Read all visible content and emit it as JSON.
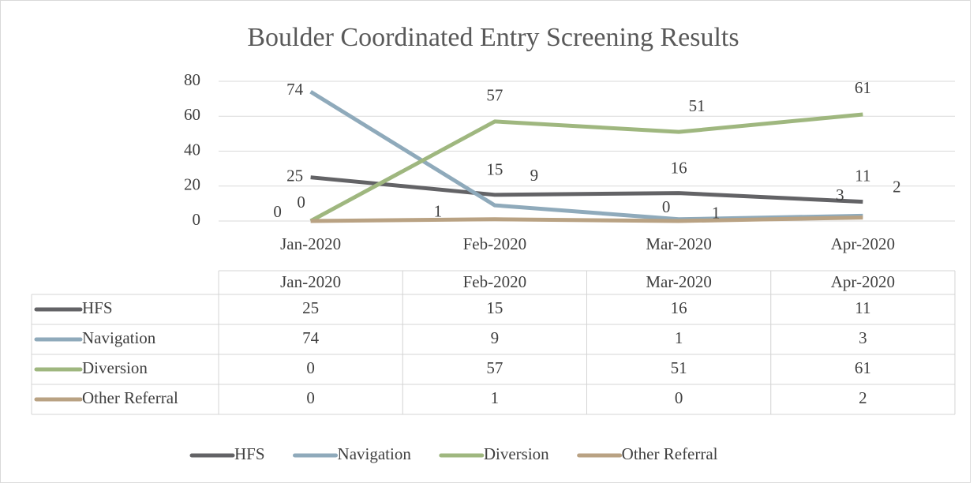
{
  "chart_data": {
    "type": "line",
    "title": "Boulder Coordinated Entry Screening Results",
    "categories": [
      "Jan-2020",
      "Feb-2020",
      "Mar-2020",
      "Apr-2020"
    ],
    "series": [
      {
        "name": "HFS",
        "color": "#636366",
        "values": [
          25,
          15,
          16,
          11
        ]
      },
      {
        "name": "Navigation",
        "color": "#8faabb",
        "values": [
          74,
          9,
          1,
          3
        ]
      },
      {
        "name": "Diversion",
        "color": "#9fb77f",
        "values": [
          0,
          57,
          51,
          61
        ]
      },
      {
        "name": "Other Referral",
        "color": "#b9a283",
        "values": [
          0,
          1,
          0,
          2
        ]
      }
    ],
    "ylim": [
      0,
      80
    ],
    "yticks": [
      0,
      20,
      40,
      60,
      80
    ],
    "grid": true,
    "legend": "bottom"
  }
}
